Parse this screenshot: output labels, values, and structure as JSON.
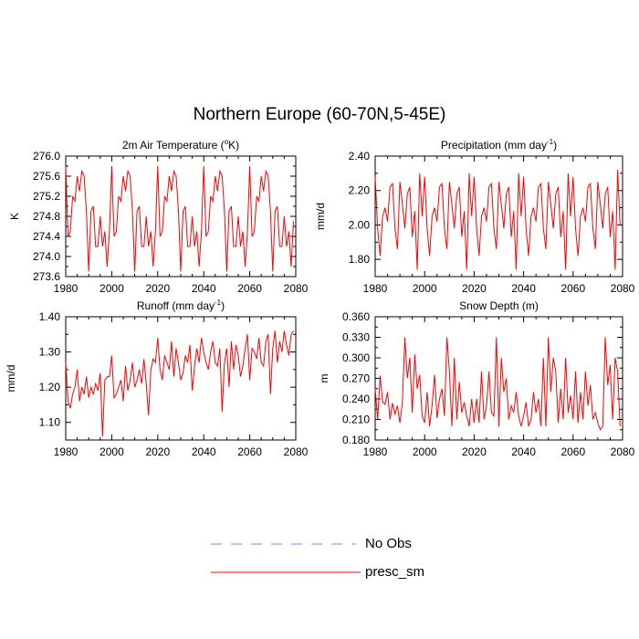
{
  "title": "Northern Europe (60-70N,5-45E)",
  "colors": {
    "series": "#ff0000",
    "obs": "#7f7fff",
    "axis": "#000000"
  },
  "legend": [
    {
      "label": "No Obs",
      "style": "dashed",
      "color": "#7f7fff"
    },
    {
      "label": "presc_sm",
      "style": "solid",
      "color": "#ff0000"
    }
  ],
  "chart_data": [
    {
      "type": "line",
      "title": "2m Air Temperature (°K)",
      "title_parts": {
        "pre": "2m Air Temperature (",
        "sup": "o",
        "post": "K)"
      },
      "ylabel": "K",
      "xlim": [
        1980,
        2080
      ],
      "ylim": [
        273.6,
        276.0
      ],
      "xticks": [
        1980,
        2000,
        2020,
        2040,
        2060,
        2080
      ],
      "yticks": [
        "273.6",
        "274.0",
        "274.4",
        "274.8",
        "275.2",
        "275.6",
        "276.0"
      ],
      "series": [
        {
          "x_start": 1980,
          "values": [
            275.8,
            274.4,
            274.5,
            275.2,
            275.1,
            275.6,
            275.3,
            275.7,
            275.6,
            274.9,
            273.7,
            274.9,
            275.0,
            274.2,
            274.2,
            274.8,
            274.2,
            274.5,
            273.8,
            274.5,
            275.8,
            274.4,
            274.5,
            275.2,
            275.1,
            275.6,
            275.3,
            275.7,
            275.6,
            274.9,
            273.7,
            274.9,
            275.0,
            274.2,
            274.2,
            274.8,
            274.2,
            274.5,
            273.8,
            274.5,
            275.8,
            274.4,
            274.5,
            275.2,
            275.1,
            275.6,
            275.3,
            275.7,
            275.6,
            274.9,
            273.7,
            274.9,
            275.0,
            274.2,
            274.2,
            274.8,
            274.2,
            274.5,
            273.8,
            274.5,
            275.8,
            274.4,
            274.5,
            275.2,
            275.1,
            275.6,
            275.3,
            275.7,
            275.6,
            274.9,
            273.7,
            274.9,
            275.0,
            274.2,
            274.2,
            274.8,
            274.2,
            274.5,
            273.8,
            274.5,
            275.8,
            274.4,
            274.5,
            275.2,
            275.1,
            275.6,
            275.3,
            275.7,
            275.6,
            274.9,
            273.7,
            274.9,
            275.0,
            274.2,
            274.2,
            274.8,
            274.2,
            274.5,
            273.8,
            274.7
          ]
        }
      ]
    },
    {
      "type": "line",
      "title": "Precipitation (mm day-1)",
      "title_parts": {
        "pre": "Precipitation (mm day",
        "sup": "-1",
        "post": ")"
      },
      "ylabel": "mm/d",
      "xlim": [
        1980,
        2080
      ],
      "ylim": [
        1.7,
        2.4
      ],
      "xticks": [
        1980,
        2000,
        2020,
        2040,
        2060,
        2080
      ],
      "yticks": [
        "1.80",
        "2.00",
        "2.20",
        "2.40"
      ],
      "series": [
        {
          "x_start": 1980,
          "values": [
            2.28,
            1.98,
            1.82,
            2.05,
            2.1,
            2.02,
            2.22,
            2.24,
            1.98,
            1.86,
            2.25,
            2.12,
            1.98,
            2.18,
            2.22,
            1.93,
            2.08,
            1.74,
            2.3,
            2.05,
            2.28,
            1.98,
            1.82,
            2.05,
            2.1,
            2.02,
            2.22,
            2.24,
            1.98,
            1.86,
            2.25,
            2.12,
            1.98,
            2.18,
            2.22,
            1.93,
            2.08,
            1.74,
            2.3,
            2.05,
            2.28,
            1.98,
            1.82,
            2.05,
            2.1,
            2.02,
            2.22,
            2.24,
            1.98,
            1.86,
            2.25,
            2.12,
            1.98,
            2.18,
            2.22,
            1.93,
            2.08,
            1.74,
            2.3,
            2.05,
            2.28,
            1.98,
            1.82,
            2.05,
            2.1,
            2.02,
            2.22,
            2.24,
            1.98,
            1.86,
            2.25,
            2.12,
            1.98,
            2.18,
            2.22,
            1.93,
            2.08,
            1.74,
            2.3,
            2.05,
            2.28,
            1.98,
            1.82,
            2.05,
            2.1,
            2.02,
            2.22,
            2.24,
            1.98,
            1.86,
            2.25,
            2.12,
            1.98,
            2.18,
            2.22,
            1.93,
            2.08,
            1.74,
            2.32,
            2.0
          ]
        }
      ]
    },
    {
      "type": "line",
      "title": "Runoff (mm day-1)",
      "title_parts": {
        "pre": "Runoff (mm day",
        "sup": "-1",
        "post": ")"
      },
      "ylabel": "mm/d",
      "xlim": [
        1980,
        2080
      ],
      "ylim": [
        1.05,
        1.4
      ],
      "xticks": [
        1980,
        2000,
        2020,
        2040,
        2060,
        2080
      ],
      "yticks": [
        "1.10",
        "1.20",
        "1.30",
        "1.40"
      ],
      "series": [
        {
          "x_start": 1980,
          "values": [
            1.27,
            1.16,
            1.14,
            1.18,
            1.2,
            1.25,
            1.16,
            1.2,
            1.18,
            1.23,
            1.17,
            1.2,
            1.18,
            1.21,
            1.19,
            1.24,
            1.06,
            1.22,
            1.23,
            1.23,
            1.29,
            1.17,
            1.18,
            1.2,
            1.22,
            1.16,
            1.26,
            1.19,
            1.22,
            1.27,
            1.2,
            1.22,
            1.25,
            1.21,
            1.28,
            1.21,
            1.12,
            1.25,
            1.28,
            1.27,
            1.34,
            1.25,
            1.22,
            1.29,
            1.27,
            1.25,
            1.33,
            1.23,
            1.31,
            1.27,
            1.22,
            1.24,
            1.29,
            1.27,
            1.32,
            1.19,
            1.26,
            1.31,
            1.27,
            1.34,
            1.3,
            1.27,
            1.25,
            1.3,
            1.33,
            1.27,
            1.26,
            1.31,
            1.13,
            1.27,
            1.31,
            1.2,
            1.33,
            1.25,
            1.32,
            1.29,
            1.23,
            1.26,
            1.31,
            1.35,
            1.22,
            1.31,
            1.3,
            1.28,
            1.34,
            1.27,
            1.26,
            1.33,
            1.35,
            1.18,
            1.31,
            1.36,
            1.27,
            1.33,
            1.3,
            1.36,
            1.32,
            1.29,
            1.35,
            1.36
          ]
        }
      ]
    },
    {
      "type": "line",
      "title": "Snow Depth (m)",
      "ylabel": "m",
      "xlim": [
        1980,
        2080
      ],
      "ylim": [
        0.18,
        0.36
      ],
      "xticks": [
        1980,
        2000,
        2020,
        2040,
        2060,
        2080
      ],
      "yticks": [
        "0.180",
        "0.210",
        "0.240",
        "0.270",
        "0.300",
        "0.330",
        "0.360"
      ],
      "series": [
        {
          "x_start": 1980,
          "values": [
            0.255,
            0.21,
            0.274,
            0.236,
            0.232,
            0.25,
            0.21,
            0.234,
            0.218,
            0.23,
            0.205,
            0.235,
            0.33,
            0.27,
            0.3,
            0.22,
            0.305,
            0.255,
            0.275,
            0.215,
            0.205,
            0.25,
            0.2,
            0.23,
            0.275,
            0.212,
            0.24,
            0.255,
            0.215,
            0.33,
            0.28,
            0.2,
            0.3,
            0.21,
            0.265,
            0.22,
            0.235,
            0.215,
            0.2,
            0.24,
            0.205,
            0.24,
            0.205,
            0.28,
            0.21,
            0.23,
            0.28,
            0.22,
            0.215,
            0.33,
            0.2,
            0.3,
            0.25,
            0.27,
            0.21,
            0.23,
            0.22,
            0.25,
            0.215,
            0.2,
            0.215,
            0.235,
            0.2,
            0.21,
            0.25,
            0.22,
            0.24,
            0.2,
            0.3,
            0.2,
            0.33,
            0.25,
            0.3,
            0.28,
            0.205,
            0.255,
            0.21,
            0.3,
            0.22,
            0.245,
            0.21,
            0.28,
            0.205,
            0.25,
            0.21,
            0.28,
            0.23,
            0.26,
            0.21,
            0.22,
            0.205,
            0.195,
            0.2,
            0.33,
            0.26,
            0.29,
            0.21,
            0.3,
            0.28,
            0.2
          ]
        }
      ]
    }
  ]
}
